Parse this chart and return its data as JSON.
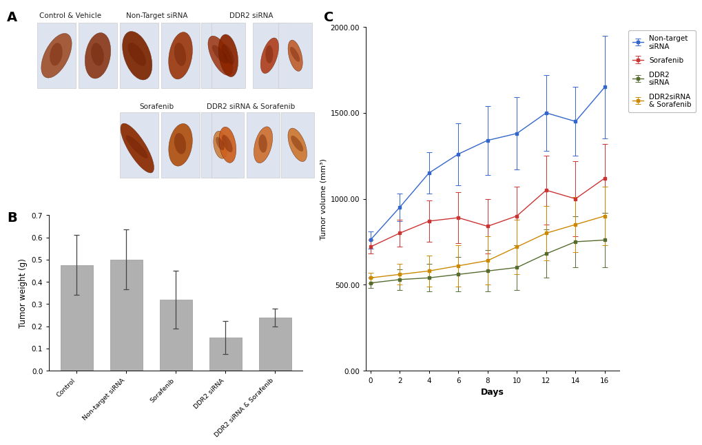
{
  "panel_A_label": "A",
  "panel_B_label": "B",
  "panel_C_label": "C",
  "bar_categories": [
    "Control",
    "Non-target siRNA",
    "Sorafenib",
    "DDR2 siRNA",
    "DDR2 siRNA & Sorafenib"
  ],
  "bar_values": [
    0.475,
    0.5,
    0.32,
    0.15,
    0.24
  ],
  "bar_errors": [
    0.135,
    0.135,
    0.13,
    0.075,
    0.04
  ],
  "bar_color": "#b0b0b0",
  "bar_ylabel": "Tumor weight (g)",
  "bar_ylim": [
    0,
    0.7
  ],
  "bar_yticks": [
    0,
    0.1,
    0.2,
    0.3,
    0.4,
    0.5,
    0.6,
    0.7
  ],
  "days": [
    0,
    2,
    4,
    6,
    8,
    10,
    12,
    14,
    16
  ],
  "nontarget_values": [
    760,
    950,
    1150,
    1260,
    1340,
    1380,
    1500,
    1450,
    1650
  ],
  "nontarget_errors": [
    50,
    80,
    120,
    180,
    200,
    210,
    220,
    200,
    300
  ],
  "nontarget_color": "#3366cc",
  "nontarget_label": "Non-target\nsiRNA",
  "sorafenib_values": [
    720,
    800,
    870,
    890,
    840,
    900,
    1050,
    1000,
    1120
  ],
  "sorafenib_errors": [
    40,
    80,
    120,
    150,
    160,
    170,
    200,
    220,
    200
  ],
  "sorafenib_color": "#cc3333",
  "sorafenib_label": "Sorafenib",
  "ddr2_values": [
    510,
    530,
    540,
    560,
    580,
    600,
    680,
    750,
    760
  ],
  "ddr2_errors": [
    30,
    60,
    80,
    100,
    120,
    130,
    140,
    150,
    160
  ],
  "ddr2_color": "#556b2f",
  "ddr2_label": "DDR2\nsiRNA",
  "combo_values": [
    540,
    560,
    580,
    610,
    640,
    720,
    800,
    850,
    900
  ],
  "combo_errors": [
    30,
    60,
    90,
    120,
    140,
    160,
    160,
    160,
    170
  ],
  "combo_color": "#cc8800",
  "combo_label": "DDR2siRNA\n& Sorafenib",
  "line_ylabel": "Tumor volume (mm³)",
  "line_xlabel": "Days",
  "line_ylim": [
    0,
    2000
  ],
  "line_yticks": [
    0.0,
    500.0,
    1000.0,
    1500.0,
    2000.0
  ],
  "bg_color": "#ffffff",
  "tumor_tile_bg": "#e8eaf0",
  "tumor_colors_row1_ctrl": [
    "#a0522d",
    "#8b3a1a"
  ],
  "tumor_colors_row1_nt": [
    "#7b2500",
    "#9b3a10",
    "#a04020"
  ],
  "tumor_colors_row1_ddr2": [
    "#8b2500",
    "#b04020",
    "#c06030"
  ],
  "tumor_colors_row2_sor": [
    "#8b2a00",
    "#b05010",
    "#cc8040"
  ],
  "tumor_colors_row2_combo": [
    "#cc6020",
    "#cc7030",
    "#cc7830"
  ]
}
